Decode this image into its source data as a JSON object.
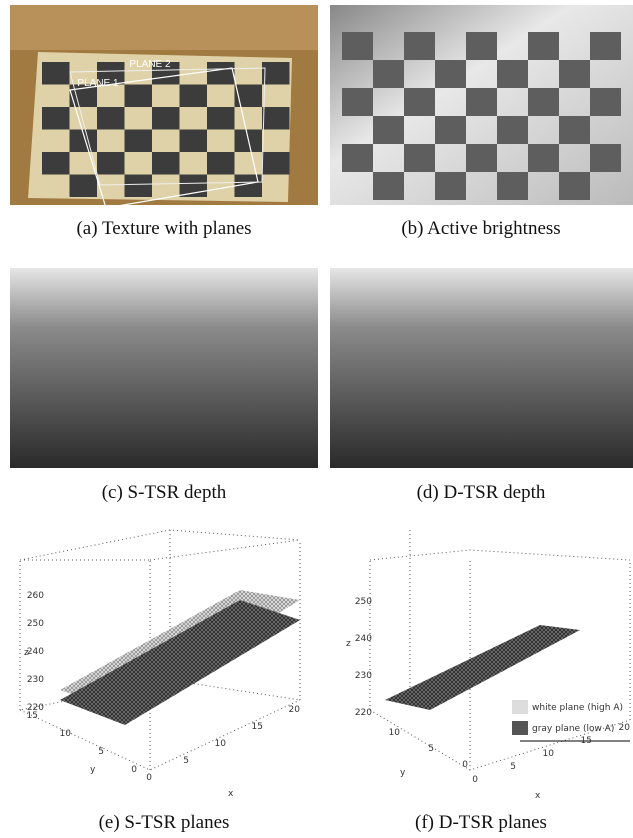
{
  "panels": [
    {
      "caption": "(a) Texture with planes",
      "labels": [
        "PLANE 2",
        "PLANE 1"
      ]
    },
    {
      "caption": "(b) Active brightness"
    },
    {
      "caption": "(c) S-TSR depth"
    },
    {
      "caption": "(d) D-TSR depth"
    },
    {
      "caption": "(e) S-TSR planes",
      "axis_names": [
        "z",
        "y",
        "x"
      ],
      "zticks": [
        260,
        250,
        240,
        230,
        220
      ],
      "yticks": [
        15,
        10,
        5,
        0
      ],
      "xticks": [
        0,
        5,
        10,
        15,
        20
      ]
    },
    {
      "caption": "(f) D-TSR planes",
      "axis_names": [
        "z",
        "y",
        "x"
      ],
      "zticks": [
        250,
        240,
        230,
        220
      ],
      "yticks": [
        10,
        5,
        0
      ],
      "xticks": [
        0,
        5,
        10,
        15,
        20
      ],
      "legend": [
        "white plane (high A)",
        "gray plane (low A)"
      ]
    }
  ]
}
